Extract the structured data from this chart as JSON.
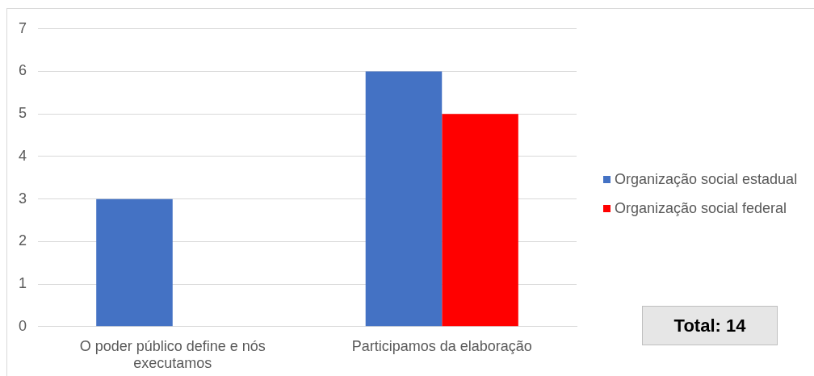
{
  "chart_data": {
    "type": "bar",
    "categories": [
      "O poder público define e nós executamos",
      "Participamos da elaboração"
    ],
    "series": [
      {
        "name": "Organização social estadual",
        "color": "#4472c4",
        "values": [
          3,
          6
        ]
      },
      {
        "name": "Organização social federal",
        "color": "#ff0000",
        "values": [
          0,
          5
        ]
      }
    ],
    "ylim": [
      0,
      7
    ],
    "yticks": [
      0,
      1,
      2,
      3,
      4,
      5,
      6,
      7
    ],
    "grid": "y",
    "legend": "right",
    "annotations": [
      "Total: 14"
    ]
  }
}
